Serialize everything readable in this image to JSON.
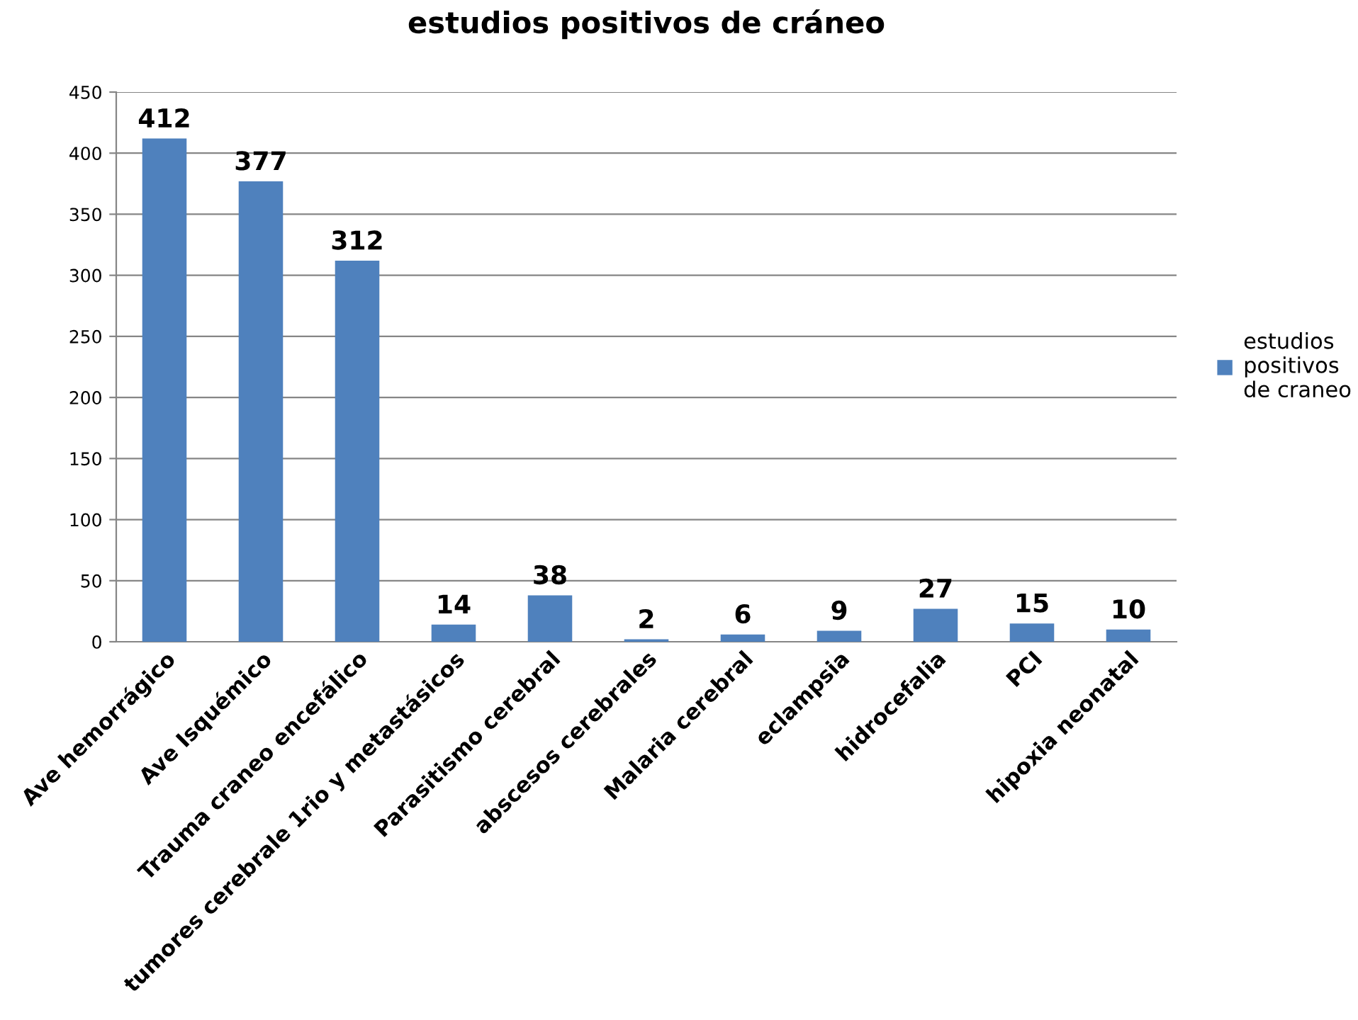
{
  "chart_data": {
    "type": "bar",
    "title": "estudios positivos de cráneo",
    "categories": [
      "Ave hemorrágico",
      "Ave Isquémico",
      "Trauma craneo encefálico",
      "tumores cerebrale 1rio y metastásicos",
      "Parasitismo cerebral",
      "abscesos cerebrales",
      "Malaria cerebral",
      "eclampsia",
      "hidrocefalia",
      "PCI",
      "hipoxia neonatal"
    ],
    "series": [
      {
        "name": "estudios\npositivos\nde craneo",
        "color": "#4f81bd",
        "values": [
          412,
          377,
          312,
          14,
          38,
          2,
          6,
          9,
          27,
          15,
          10
        ]
      }
    ],
    "ylim": [
      0,
      450
    ],
    "yticks": [
      0,
      50,
      100,
      150,
      200,
      250,
      300,
      350,
      400,
      450
    ],
    "grid": "y",
    "legend": "right",
    "data_labels": true
  }
}
